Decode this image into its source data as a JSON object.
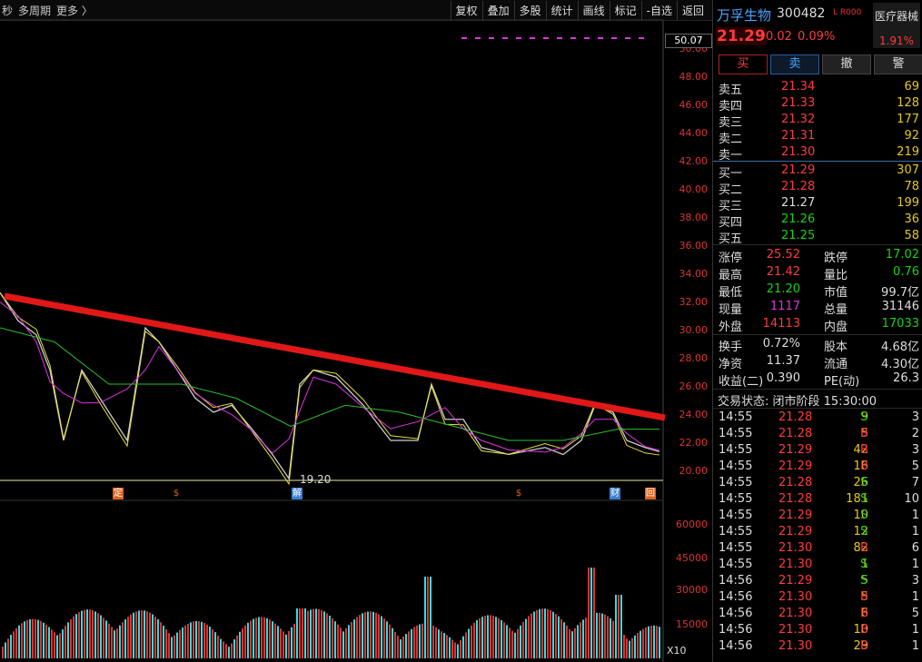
{
  "toolbar": {
    "left": [
      "秒",
      "多周期",
      "更多 〉"
    ],
    "right": [
      "复权",
      "叠加",
      "多股",
      "统计",
      "画线",
      "标记",
      "-自选",
      "返回"
    ]
  },
  "price_axis": {
    "labels": [
      "50.00",
      "48.00",
      "46.00",
      "44.00",
      "42.00",
      "40.00",
      "38.00",
      "36.00",
      "34.00",
      "32.00",
      "30.00",
      "28.00",
      "26.00",
      "24.00",
      "22.00",
      "20.00"
    ],
    "current_tag": "50.07",
    "low_label": "19.20"
  },
  "volume_axis": {
    "labels": [
      "60000",
      "45000",
      "30000",
      "15000"
    ],
    "unit": "X10"
  },
  "event_markers": [
    {
      "label": "定",
      "price_index": 0
    },
    {
      "label": "$",
      "price_index": 1
    },
    {
      "label": "解",
      "price_index": 2
    },
    {
      "label": "$",
      "price_index": 3
    },
    {
      "label": "财",
      "price_index": 4
    },
    {
      "label": "回",
      "price_index": 5
    }
  ],
  "stock": {
    "name": "万孚生物",
    "code": "300482",
    "flag": "L R000",
    "sector": "医疗器械",
    "sector_change": "1.91%",
    "price": "21.29",
    "change": "0.02",
    "pct": "0.09%"
  },
  "trade_buttons": [
    "买",
    "卖",
    "撤",
    "警"
  ],
  "asks": [
    {
      "label": "卖五",
      "price": "21.34",
      "vol": "69"
    },
    {
      "label": "卖四",
      "price": "21.33",
      "vol": "128"
    },
    {
      "label": "卖三",
      "price": "21.32",
      "vol": "177"
    },
    {
      "label": "卖二",
      "price": "21.31",
      "vol": "92"
    },
    {
      "label": "卖一",
      "price": "21.30",
      "vol": "219"
    }
  ],
  "bids": [
    {
      "label": "买一",
      "price": "21.29",
      "vol": "307",
      "pc": "red"
    },
    {
      "label": "买二",
      "price": "21.28",
      "vol": "78",
      "pc": "red"
    },
    {
      "label": "买三",
      "price": "21.27",
      "vol": "199",
      "pc": "white"
    },
    {
      "label": "买四",
      "price": "21.26",
      "vol": "36",
      "pc": "green"
    },
    {
      "label": "买五",
      "price": "21.25",
      "vol": "58",
      "pc": "green"
    }
  ],
  "stats": [
    {
      "l1": "涨停",
      "v1": "25.52",
      "c1": "red",
      "l2": "跌停",
      "v2": "17.02",
      "c2": "green"
    },
    {
      "l1": "最高",
      "v1": "21.42",
      "c1": "red",
      "l2": "量比",
      "v2": "0.76",
      "c2": "green"
    },
    {
      "l1": "最低",
      "v1": "21.20",
      "c1": "green",
      "l2": "市值",
      "v2": "99.7亿",
      "c2": "white"
    },
    {
      "l1": "现量",
      "v1": "1117",
      "c1": "magenta",
      "l2": "总量",
      "v2": "31146",
      "c2": "white"
    },
    {
      "l1": "外盘",
      "v1": "14113",
      "c1": "red",
      "l2": "内盘",
      "v2": "17033",
      "c2": "green"
    }
  ],
  "stats2": [
    {
      "l1": "换手",
      "v1": "0.72%",
      "c1": "white",
      "l2": "股本",
      "v2": "4.68亿",
      "c2": "white"
    },
    {
      "l1": "净资",
      "v1": "11.37",
      "c1": "white",
      "l2": "流通",
      "v2": "4.30亿",
      "c2": "white"
    },
    {
      "l1": "收益(二)",
      "v1": "0.390",
      "c1": "white",
      "l2": "PE(动)",
      "v2": "26.3",
      "c2": "white"
    }
  ],
  "trade_status": "交易状态: 闭市阶段 15:30:00",
  "ticks": [
    {
      "t": "14:55",
      "p": "21.28",
      "v": "9",
      "s": "S",
      "n": "3"
    },
    {
      "t": "14:55",
      "p": "21.28",
      "v": "5",
      "s": "B",
      "n": "2"
    },
    {
      "t": "14:55",
      "p": "21.29",
      "v": "42",
      "s": "B",
      "n": "3"
    },
    {
      "t": "14:55",
      "p": "21.29",
      "v": "16",
      "s": "B",
      "n": "5"
    },
    {
      "t": "14:55",
      "p": "21.28",
      "v": "26",
      "s": "S",
      "n": "7"
    },
    {
      "t": "14:55",
      "p": "21.28",
      "v": "181",
      "s": "S",
      "n": "10"
    },
    {
      "t": "14:55",
      "p": "21.29",
      "v": "10",
      "s": "S",
      "n": "1"
    },
    {
      "t": "14:55",
      "p": "21.29",
      "v": "12",
      "s": "S",
      "n": "1"
    },
    {
      "t": "14:55",
      "p": "21.30",
      "v": "82",
      "s": "B",
      "n": "6"
    },
    {
      "t": "14:55",
      "p": "21.30",
      "v": "1",
      "s": "S",
      "n": "1"
    },
    {
      "t": "14:56",
      "p": "21.29",
      "v": "5",
      "s": "S",
      "n": "3"
    },
    {
      "t": "14:56",
      "p": "21.30",
      "v": "5",
      "s": "B",
      "n": "1"
    },
    {
      "t": "14:56",
      "p": "21.30",
      "v": "6",
      "s": "B",
      "n": "5"
    },
    {
      "t": "14:56",
      "p": "21.30",
      "v": "10",
      "s": "B",
      "n": "1"
    },
    {
      "t": "14:56",
      "p": "21.30",
      "v": "29",
      "s": "B",
      "n": "1"
    }
  ]
}
